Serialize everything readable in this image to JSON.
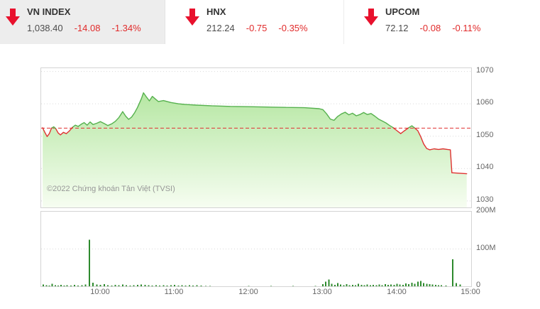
{
  "header": {
    "tickers": [
      {
        "name": "VN INDEX",
        "value": "1,038.40",
        "change": "-14.08",
        "percent": "-1.34%"
      },
      {
        "name": "HNX",
        "value": "212.24",
        "change": "-0.75",
        "percent": "-0.35%"
      },
      {
        "name": "UPCOM",
        "value": "72.12",
        "change": "-0.08",
        "percent": "-0.11%"
      }
    ],
    "colors": {
      "arrow_red": "#e8112d",
      "change_red": "#e12b2b",
      "highlight_bg": "#ededed"
    }
  },
  "chart": {
    "copyright": "©2022 Chứng khoán Tản Việt (TVSI)"
  },
  "chart_data": {
    "type": "area",
    "x_axis": {
      "min_hour": 9.2,
      "max_hour": 15.0,
      "ticks": [
        {
          "label": "10:00",
          "hour": 10
        },
        {
          "label": "11:00",
          "hour": 11
        },
        {
          "label": "12:00",
          "hour": 12
        },
        {
          "label": "13:00",
          "hour": 13
        },
        {
          "label": "14:00",
          "hour": 14
        },
        {
          "label": "15:00",
          "hour": 15
        }
      ]
    },
    "price_axis": {
      "min": 1028,
      "max": 1071,
      "ticks": [
        1030,
        1040,
        1050,
        1060,
        1070
      ]
    },
    "volume_axis": {
      "min": 0,
      "max": 200,
      "ticks": [
        {
          "label": "0",
          "value": 0
        },
        {
          "label": "100M",
          "value": 100
        },
        {
          "label": "200M",
          "value": 200
        }
      ]
    },
    "reference_price": 1052.48,
    "series": [
      [
        9.22,
        1052.6
      ],
      [
        9.25,
        1051.2
      ],
      [
        9.28,
        1049.9
      ],
      [
        9.31,
        1050.8
      ],
      [
        9.34,
        1052.5
      ],
      [
        9.37,
        1052.9
      ],
      [
        9.4,
        1052.2
      ],
      [
        9.43,
        1051.0
      ],
      [
        9.46,
        1050.4
      ],
      [
        9.5,
        1051.2
      ],
      [
        9.54,
        1050.8
      ],
      [
        9.58,
        1051.6
      ],
      [
        9.62,
        1052.7
      ],
      [
        9.66,
        1053.4
      ],
      [
        9.7,
        1053.0
      ],
      [
        9.74,
        1053.7
      ],
      [
        9.78,
        1054.2
      ],
      [
        9.82,
        1053.4
      ],
      [
        9.86,
        1054.4
      ],
      [
        9.9,
        1053.6
      ],
      [
        9.95,
        1054.0
      ],
      [
        10.0,
        1054.5
      ],
      [
        10.05,
        1053.9
      ],
      [
        10.1,
        1053.3
      ],
      [
        10.15,
        1053.8
      ],
      [
        10.2,
        1054.6
      ],
      [
        10.25,
        1055.8
      ],
      [
        10.3,
        1057.6
      ],
      [
        10.34,
        1056.2
      ],
      [
        10.38,
        1055.2
      ],
      [
        10.42,
        1055.9
      ],
      [
        10.46,
        1057.2
      ],
      [
        10.5,
        1058.9
      ],
      [
        10.55,
        1061.5
      ],
      [
        10.58,
        1063.4
      ],
      [
        10.62,
        1062.1
      ],
      [
        10.66,
        1060.9
      ],
      [
        10.7,
        1062.3
      ],
      [
        10.74,
        1061.5
      ],
      [
        10.78,
        1060.7
      ],
      [
        10.85,
        1061.0
      ],
      [
        10.95,
        1060.4
      ],
      [
        11.05,
        1060.0
      ],
      [
        11.15,
        1059.8
      ],
      [
        11.3,
        1059.6
      ],
      [
        11.5,
        1059.4
      ],
      [
        11.75,
        1059.2
      ],
      [
        12.0,
        1059.1
      ],
      [
        12.25,
        1059.0
      ],
      [
        12.5,
        1058.9
      ],
      [
        12.75,
        1058.8
      ],
      [
        12.95,
        1058.5
      ],
      [
        13.0,
        1058.2
      ],
      [
        13.05,
        1056.9
      ],
      [
        13.1,
        1055.3
      ],
      [
        13.15,
        1054.9
      ],
      [
        13.2,
        1056.1
      ],
      [
        13.25,
        1056.9
      ],
      [
        13.3,
        1057.4
      ],
      [
        13.35,
        1056.6
      ],
      [
        13.4,
        1057.1
      ],
      [
        13.45,
        1056.3
      ],
      [
        13.5,
        1056.7
      ],
      [
        13.55,
        1057.3
      ],
      [
        13.6,
        1056.7
      ],
      [
        13.65,
        1057.0
      ],
      [
        13.7,
        1056.2
      ],
      [
        13.75,
        1055.3
      ],
      [
        13.8,
        1054.7
      ],
      [
        13.85,
        1054.1
      ],
      [
        13.9,
        1053.3
      ],
      [
        13.95,
        1052.6
      ],
      [
        14.0,
        1051.7
      ],
      [
        14.05,
        1050.8
      ],
      [
        14.1,
        1051.7
      ],
      [
        14.15,
        1052.5
      ],
      [
        14.2,
        1053.2
      ],
      [
        14.24,
        1052.5
      ],
      [
        14.28,
        1051.7
      ],
      [
        14.32,
        1049.8
      ],
      [
        14.36,
        1047.6
      ],
      [
        14.4,
        1046.2
      ],
      [
        14.44,
        1045.8
      ],
      [
        14.5,
        1046.1
      ],
      [
        14.56,
        1045.9
      ],
      [
        14.62,
        1046.1
      ],
      [
        14.68,
        1045.9
      ],
      [
        14.72,
        1045.8
      ],
      [
        14.74,
        1038.7
      ],
      [
        14.94,
        1038.4
      ]
    ],
    "volume_bars": [
      [
        9.23,
        5
      ],
      [
        9.27,
        3
      ],
      [
        9.31,
        2
      ],
      [
        9.35,
        7
      ],
      [
        9.39,
        3
      ],
      [
        9.43,
        2
      ],
      [
        9.47,
        4
      ],
      [
        9.51,
        2
      ],
      [
        9.55,
        3
      ],
      [
        9.6,
        2
      ],
      [
        9.65,
        4
      ],
      [
        9.7,
        2
      ],
      [
        9.75,
        3
      ],
      [
        9.8,
        5
      ],
      [
        9.85,
        125
      ],
      [
        9.9,
        10
      ],
      [
        9.95,
        5
      ],
      [
        10.0,
        4
      ],
      [
        10.05,
        6
      ],
      [
        10.1,
        3
      ],
      [
        10.15,
        2
      ],
      [
        10.2,
        4
      ],
      [
        10.25,
        3
      ],
      [
        10.3,
        5
      ],
      [
        10.35,
        3
      ],
      [
        10.4,
        2
      ],
      [
        10.45,
        3
      ],
      [
        10.5,
        4
      ],
      [
        10.55,
        5
      ],
      [
        10.6,
        4
      ],
      [
        10.65,
        3
      ],
      [
        10.7,
        2
      ],
      [
        10.75,
        3
      ],
      [
        10.8,
        2
      ],
      [
        10.85,
        3
      ],
      [
        10.9,
        2
      ],
      [
        10.95,
        3
      ],
      [
        11.0,
        4
      ],
      [
        11.05,
        2
      ],
      [
        11.1,
        3
      ],
      [
        11.15,
        2
      ],
      [
        11.2,
        3
      ],
      [
        11.25,
        2
      ],
      [
        11.3,
        3
      ],
      [
        11.36,
        1.5
      ],
      [
        11.42,
        1
      ],
      [
        11.48,
        1
      ],
      [
        12.0,
        0.8
      ],
      [
        12.3,
        0.6
      ],
      [
        12.6,
        0.8
      ],
      [
        12.9,
        1.2
      ],
      [
        13.0,
        6
      ],
      [
        13.04,
        12
      ],
      [
        13.08,
        18
      ],
      [
        13.12,
        7
      ],
      [
        13.16,
        4
      ],
      [
        13.2,
        9
      ],
      [
        13.24,
        5
      ],
      [
        13.28,
        3
      ],
      [
        13.32,
        6
      ],
      [
        13.36,
        3
      ],
      [
        13.4,
        4
      ],
      [
        13.44,
        3
      ],
      [
        13.48,
        7
      ],
      [
        13.52,
        4
      ],
      [
        13.56,
        3
      ],
      [
        13.6,
        5
      ],
      [
        13.64,
        3
      ],
      [
        13.68,
        4
      ],
      [
        13.72,
        3
      ],
      [
        13.76,
        5
      ],
      [
        13.8,
        3
      ],
      [
        13.84,
        6
      ],
      [
        13.88,
        4
      ],
      [
        13.92,
        5
      ],
      [
        13.96,
        4
      ],
      [
        14.0,
        7
      ],
      [
        14.04,
        5
      ],
      [
        14.08,
        4
      ],
      [
        14.12,
        8
      ],
      [
        14.16,
        6
      ],
      [
        14.2,
        10
      ],
      [
        14.24,
        7
      ],
      [
        14.28,
        12
      ],
      [
        14.32,
        14
      ],
      [
        14.36,
        9
      ],
      [
        14.4,
        7
      ],
      [
        14.44,
        6
      ],
      [
        14.48,
        5
      ],
      [
        14.52,
        4
      ],
      [
        14.56,
        3
      ],
      [
        14.6,
        3
      ],
      [
        14.66,
        2
      ],
      [
        14.75,
        72
      ],
      [
        14.8,
        9
      ],
      [
        14.85,
        5
      ]
    ],
    "colors": {
      "up": "#56b14e",
      "down": "#e03131",
      "fill_top": "#b6e7a3",
      "fill_bottom": "#f6fdf1",
      "reference": "#e03131",
      "grid": "#dadada",
      "axis_text": "#666666",
      "volume": "#2d8a2d",
      "border": "#d4d4d4"
    }
  }
}
